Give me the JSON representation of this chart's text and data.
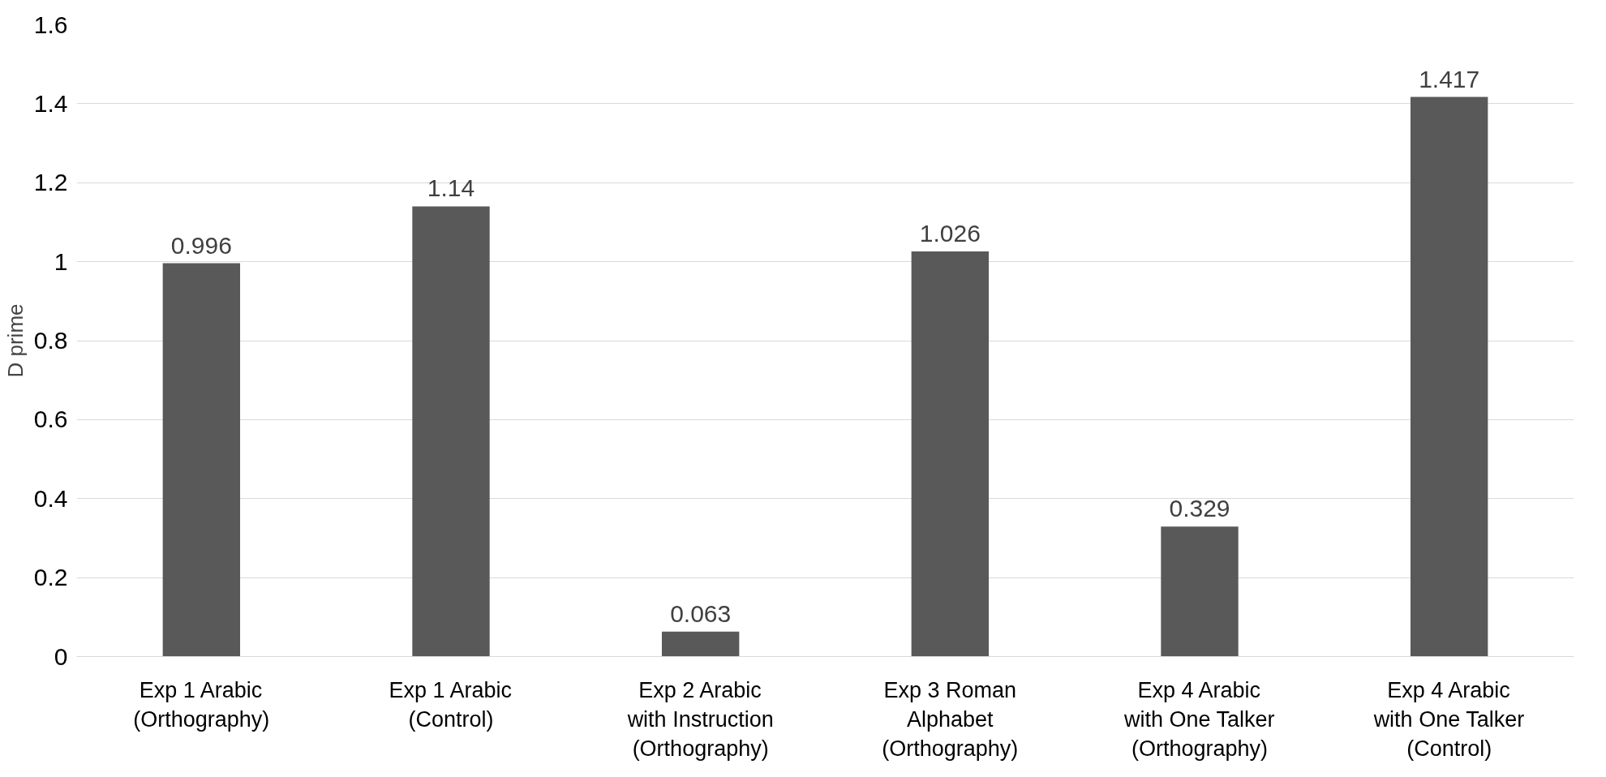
{
  "chart_data": {
    "type": "bar",
    "ylabel": "D prime",
    "categories": [
      "Exp 1 Arabic\n(Orthography)",
      "Exp 1 Arabic\n(Control)",
      "Exp 2 Arabic\nwith Instruction\n(Orthography)",
      "Exp 3 Roman\nAlphabet\n(Orthography)",
      "Exp 4 Arabic\nwith One Talker\n(Orthography)",
      "Exp 4 Arabic\nwith One Talker\n(Control)"
    ],
    "values": [
      0.996,
      1.14,
      0.063,
      1.026,
      0.329,
      1.417
    ],
    "color": "#595959",
    "ylim": [
      0,
      1.6
    ],
    "yticks": [
      0,
      0.2,
      0.4,
      0.6,
      0.8,
      1,
      1.2,
      1.4,
      1.6
    ],
    "grid": "y",
    "data_labels": true
  }
}
